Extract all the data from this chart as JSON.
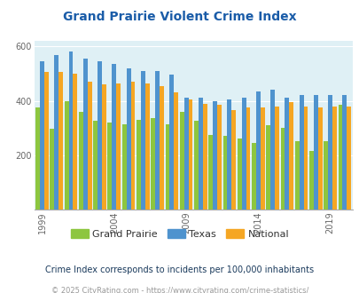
{
  "title": "Grand Prairie Violent Crime Index",
  "years": [
    1999,
    2000,
    2001,
    2002,
    2003,
    2004,
    2005,
    2006,
    2007,
    2008,
    2009,
    2010,
    2011,
    2012,
    2013,
    2014,
    2015,
    2016,
    2017,
    2018,
    2019,
    2020
  ],
  "grand_prairie": [
    375,
    298,
    400,
    360,
    325,
    320,
    315,
    330,
    335,
    315,
    360,
    325,
    275,
    270,
    260,
    245,
    310,
    300,
    250,
    215,
    250,
    385
  ],
  "texas": [
    545,
    570,
    580,
    555,
    545,
    535,
    520,
    510,
    510,
    495,
    410,
    410,
    400,
    405,
    410,
    435,
    440,
    410,
    420,
    420,
    420,
    420
  ],
  "national": [
    505,
    505,
    500,
    470,
    460,
    465,
    470,
    465,
    455,
    430,
    405,
    390,
    385,
    365,
    375,
    375,
    380,
    395,
    380,
    375,
    380,
    380
  ],
  "color_gp": "#8dc63f",
  "color_tx": "#4f93ce",
  "color_nat": "#f5a623",
  "bg_color": "#dff0f5",
  "ylim": [
    0,
    620
  ],
  "yticks": [
    200,
    400,
    600
  ],
  "xlabel_ticks": [
    1999,
    2004,
    2009,
    2014,
    2019
  ],
  "subtitle": "Crime Index corresponds to incidents per 100,000 inhabitants",
  "footer": "© 2025 CityRating.com - https://www.cityrating.com/crime-statistics/",
  "title_color": "#1a5ca8",
  "subtitle_color": "#1a3a5c",
  "footer_color": "#999999"
}
